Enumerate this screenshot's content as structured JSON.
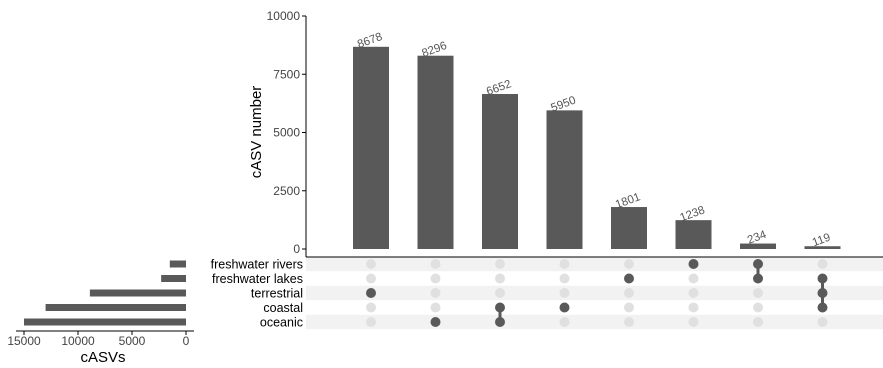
{
  "chart_data": {
    "type": "bar",
    "variant": "upset",
    "colors": {
      "bar": "#595959",
      "dot_active": "#595959",
      "dot_inactive": "#e0e0e0",
      "stripe": "#f2f2f2",
      "axis": "#000000"
    },
    "intersections": {
      "ylabel": "cASV number",
      "ylim": [
        0,
        10000
      ],
      "yticks": [
        "0",
        "2500",
        "5000",
        "7500",
        "10000"
      ],
      "values": [
        8678,
        8296,
        6652,
        5950,
        1801,
        1238,
        234,
        119
      ],
      "labels": [
        "8678",
        "8296",
        "6652",
        "5950",
        "1801",
        "1238",
        "234",
        "119"
      ],
      "combinations": [
        [
          "terrestrial"
        ],
        [
          "oceanic"
        ],
        [
          "coastal",
          "oceanic"
        ],
        [
          "coastal"
        ],
        [
          "freshwater lakes"
        ],
        [
          "freshwater rivers"
        ],
        [
          "freshwater rivers",
          "freshwater lakes"
        ],
        [
          "freshwater lakes",
          "terrestrial",
          "coastal"
        ]
      ]
    },
    "sets": {
      "xlabel": "cASVs",
      "names": [
        "freshwater rivers",
        "freshwater lakes",
        "terrestrial",
        "coastal",
        "oceanic"
      ],
      "sizes": [
        1500,
        2300,
        8900,
        13000,
        15000
      ],
      "xlim": [
        0,
        15000
      ],
      "xticks": [
        "15000",
        "10000",
        "5000",
        "0"
      ]
    }
  }
}
